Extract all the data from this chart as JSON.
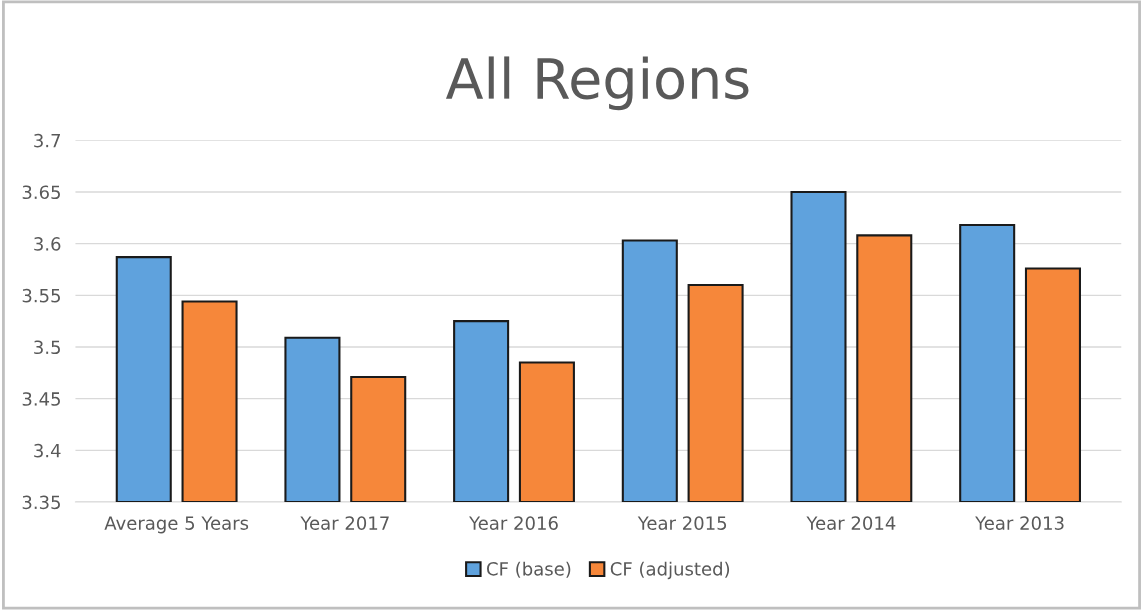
{
  "chart_data": {
    "type": "bar",
    "title": "All Regions",
    "categories": [
      "Average 5 Years",
      "Year 2017",
      "Year 2016",
      "Year 2015",
      "Year 2014",
      "Year 2013"
    ],
    "series": [
      {
        "name": "CF (base)",
        "color": "#5fa2dd",
        "values": [
          3.587,
          3.509,
          3.525,
          3.603,
          3.65,
          3.618
        ]
      },
      {
        "name": "CF (adjusted)",
        "color": "#f6873a",
        "values": [
          3.544,
          3.471,
          3.485,
          3.56,
          3.608,
          3.576
        ]
      }
    ],
    "ylim": [
      3.35,
      3.7
    ],
    "yticks": [
      3.35,
      3.4,
      3.45,
      3.5,
      3.55,
      3.6,
      3.65,
      3.7
    ],
    "grid": "y",
    "legend": "bottom"
  }
}
